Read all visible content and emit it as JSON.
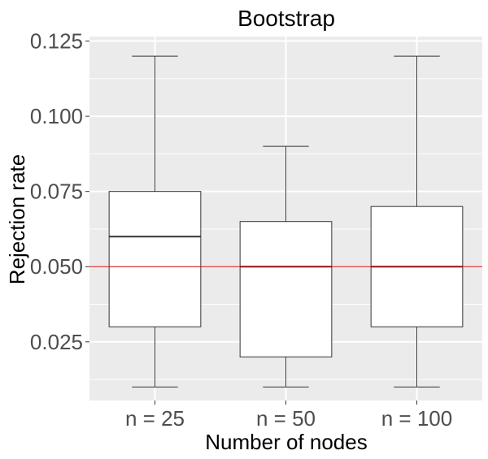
{
  "chart_data": {
    "type": "boxplot",
    "title": "Bootstrap",
    "xlabel": "Number of nodes",
    "ylabel": "Rejection rate",
    "categories": [
      "n = 25",
      "n = 50",
      "n = 100"
    ],
    "boxes": [
      {
        "category": "n = 25",
        "min": 0.01,
        "q1": 0.03,
        "median": 0.06,
        "q3": 0.075,
        "max": 0.12
      },
      {
        "category": "n = 50",
        "min": 0.01,
        "q1": 0.02,
        "median": 0.05,
        "q3": 0.065,
        "max": 0.09
      },
      {
        "category": "n = 100",
        "min": 0.01,
        "q1": 0.03,
        "median": 0.05,
        "q3": 0.07,
        "max": 0.12
      }
    ],
    "reference_line": {
      "y": 0.05,
      "color": "#cc0000"
    },
    "yticks": [
      "0.025",
      "0.050",
      "0.075",
      "0.100",
      "0.125"
    ],
    "ylim": [
      0.0055,
      0.1265
    ],
    "grid": true,
    "colors": {
      "panel": "#ebebeb",
      "grid": "#ffffff",
      "box_fill": "#ffffff",
      "box_stroke": "#333333"
    }
  }
}
